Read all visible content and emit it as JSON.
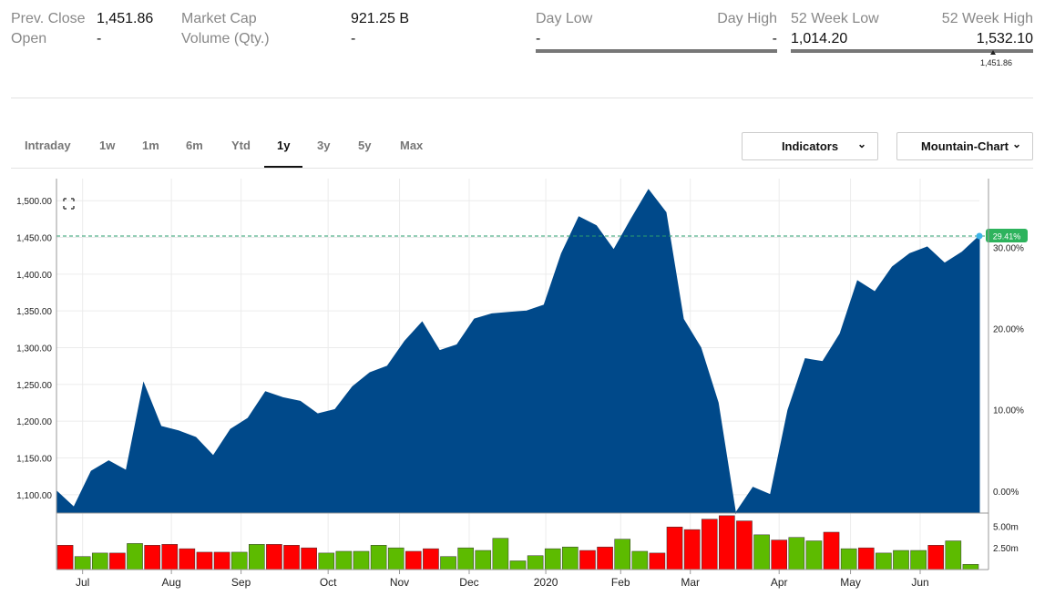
{
  "quote": {
    "prev_close_label": "Prev. Close",
    "prev_close": "1,451.86",
    "open_label": "Open",
    "open": "-",
    "market_cap_label": "Market Cap",
    "market_cap": "921.25 B",
    "volume_label": "Volume (Qty.)",
    "volume": "-",
    "day_low_label": "Day Low",
    "day_low": "-",
    "day_high_label": "Day High",
    "day_high": "-",
    "week52_low_label": "52 Week Low",
    "week52_low": "1,014.20",
    "week52_high_label": "52 Week High",
    "week52_high": "1,532.10",
    "week52_marker": "1,451.86"
  },
  "tabs": [
    "Intraday",
    "1w",
    "1m",
    "6m",
    "Ytd",
    "1y",
    "3y",
    "5y",
    "Max"
  ],
  "active_tab": "1y",
  "controls": {
    "indicators": "Indicators",
    "chart_type": "Mountain-Chart"
  },
  "colors": {
    "area": "#00498a",
    "up": "#5dbb00",
    "down": "#ff0000",
    "badge": "#2db35d",
    "ref_line": "#2a9d6e"
  },
  "icons": {
    "expand": "expand-icon"
  },
  "chart_data": {
    "type": "area",
    "price_axis": {
      "ylim": [
        1075,
        1530
      ],
      "ticks": [
        1100,
        1150,
        1200,
        1250,
        1300,
        1350,
        1400,
        1450,
        1500
      ],
      "tick_labels": [
        "1,100.00",
        "1,150.00",
        "1,200.00",
        "1,250.00",
        "1,300.00",
        "1,350.00",
        "1,400.00",
        "1,450.00",
        "1,500.00"
      ]
    },
    "pct_axis": {
      "ticks": [
        0,
        10,
        20,
        30
      ],
      "tick_labels": [
        "0.00%",
        "10.00%",
        "20.00%",
        "30.00%"
      ]
    },
    "volume_axis": {
      "ticks": [
        2.5,
        5.0
      ],
      "tick_labels": [
        "2.50m",
        "5.00m"
      ],
      "max": 6.5
    },
    "x_labels": [
      "Jul",
      "Aug",
      "Sep",
      "Oct",
      "Nov",
      "Dec",
      "2020",
      "Feb",
      "Mar",
      "Apr",
      "May",
      "Jun"
    ],
    "x_label_index": [
      1.5,
      6.6,
      10.6,
      15.6,
      19.7,
      23.7,
      28.1,
      32.4,
      36.4,
      41.5,
      45.6,
      49.6
    ],
    "series": [
      {
        "values": [
          1105,
          1083,
          1132,
          1146,
          1133,
          1252,
          1193,
          1187,
          1178,
          1153,
          1189,
          1204,
          1240,
          1232,
          1227,
          1210,
          1216,
          1247,
          1266,
          1275,
          1309,
          1335,
          1296,
          1304,
          1339,
          1346,
          1348,
          1350,
          1358,
          1428,
          1478,
          1466,
          1433,
          1475,
          1515,
          1484,
          1339,
          1300,
          1225,
          1075,
          1110,
          1100,
          1215,
          1285,
          1281,
          1319,
          1391,
          1376,
          1410,
          1428,
          1437,
          1415,
          1430,
          1452
        ]
      }
    ],
    "volume": {
      "values": [
        2.8,
        1.5,
        1.9,
        1.9,
        3.0,
        2.8,
        2.9,
        2.4,
        2.0,
        2.0,
        2.0,
        2.9,
        2.9,
        2.8,
        2.5,
        1.9,
        2.1,
        2.1,
        2.8,
        2.5,
        2.1,
        2.4,
        1.5,
        2.5,
        2.2,
        3.6,
        1.0,
        1.6,
        2.4,
        2.6,
        2.2,
        2.6,
        3.5,
        2.1,
        1.9,
        4.9,
        4.6,
        5.8,
        6.2,
        5.6,
        4.0,
        3.4,
        3.7,
        3.3,
        4.3,
        2.4,
        2.5,
        1.9,
        2.2,
        2.2,
        2.8,
        3.3,
        0.6
      ],
      "colors": [
        "down",
        "up",
        "up",
        "down",
        "up",
        "down",
        "down",
        "down",
        "down",
        "down",
        "up",
        "up",
        "down",
        "down",
        "down",
        "up",
        "up",
        "up",
        "up",
        "up",
        "down",
        "down",
        "up",
        "up",
        "up",
        "up",
        "up",
        "up",
        "up",
        "up",
        "down",
        "down",
        "up",
        "up",
        "down",
        "down",
        "down",
        "down",
        "down",
        "down",
        "up",
        "down",
        "up",
        "up",
        "down",
        "up",
        "down",
        "up",
        "up",
        "up",
        "down",
        "up",
        "up"
      ]
    },
    "reference": {
      "value": 1451.86,
      "badge": "29.41%"
    },
    "grid": true
  }
}
